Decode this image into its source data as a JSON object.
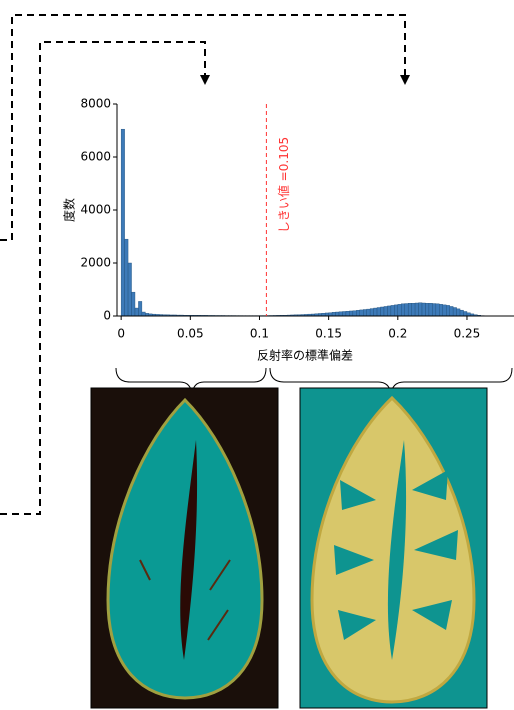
{
  "chart_data": {
    "type": "histogram",
    "x_label": "反射率の標準偏差",
    "y_label": "度数",
    "threshold": {
      "value": 0.105,
      "label": "しきい値 =0.105"
    },
    "color": "#3d7ab8",
    "threshold_color": "#ff3333",
    "xlim": [
      -0.003,
      0.284
    ],
    "ylim": [
      0,
      8000
    ],
    "xticks": [
      0,
      0.05,
      0.1,
      0.15,
      0.2,
      0.25
    ],
    "yticks": [
      0,
      2000,
      4000,
      6000,
      8000
    ],
    "bins": [
      0,
      0.0025,
      0.005,
      0.0075,
      0.01,
      0.0125,
      0.015,
      0.0175,
      0.02,
      0.0225,
      0.025,
      0.0275,
      0.03,
      0.0325,
      0.035,
      0.0375,
      0.04,
      0.0425,
      0.045,
      0.0475,
      0.05,
      0.0525,
      0.055,
      0.0575,
      0.06,
      0.0625,
      0.065,
      0.0675,
      0.07,
      0.0725,
      0.075,
      0.0775,
      0.08,
      0.0825,
      0.085,
      0.0875,
      0.09,
      0.0925,
      0.095,
      0.0975,
      0.1,
      0.1025,
      0.105,
      0.1075,
      0.11,
      0.1125,
      0.115,
      0.1175,
      0.12,
      0.1225,
      0.125,
      0.1275,
      0.13,
      0.1325,
      0.135,
      0.1375,
      0.14,
      0.1425,
      0.145,
      0.1475,
      0.15,
      0.1525,
      0.155,
      0.1575,
      0.16,
      0.1625,
      0.165,
      0.1675,
      0.17,
      0.1725,
      0.175,
      0.1775,
      0.18,
      0.1825,
      0.185,
      0.1875,
      0.19,
      0.1925,
      0.195,
      0.1975,
      0.2,
      0.2025,
      0.205,
      0.2075,
      0.21,
      0.2125,
      0.215,
      0.2175,
      0.22,
      0.2225,
      0.225,
      0.2275,
      0.23,
      0.2325,
      0.235,
      0.2375,
      0.24,
      0.2425,
      0.245,
      0.2475,
      0.25,
      0.2525,
      0.255,
      0.2575,
      0.26,
      0.2625,
      0.265,
      0.2675,
      0.27,
      0.2725,
      0.275,
      0.2775,
      0.28
    ],
    "counts": [
      7050,
      2900,
      2000,
      900,
      300,
      550,
      150,
      100,
      80,
      70,
      60,
      55,
      50,
      45,
      40,
      40,
      35,
      35,
      30,
      30,
      30,
      28,
      28,
      25,
      25,
      22,
      22,
      20,
      20,
      20,
      18,
      18,
      18,
      16,
      16,
      15,
      15,
      15,
      15,
      15,
      15,
      15,
      18,
      20,
      22,
      25,
      28,
      30,
      35,
      40,
      45,
      50,
      55,
      60,
      70,
      75,
      85,
      95,
      105,
      115,
      125,
      140,
      150,
      160,
      170,
      180,
      190,
      200,
      215,
      230,
      245,
      260,
      280,
      300,
      320,
      340,
      360,
      380,
      400,
      420,
      440,
      460,
      470,
      480,
      480,
      490,
      500,
      490,
      480,
      480,
      470,
      460,
      440,
      420,
      400,
      360,
      320,
      270,
      220,
      170,
      120,
      80,
      50,
      30,
      15,
      10,
      5,
      0,
      0,
      0,
      0,
      0
    ]
  }
}
